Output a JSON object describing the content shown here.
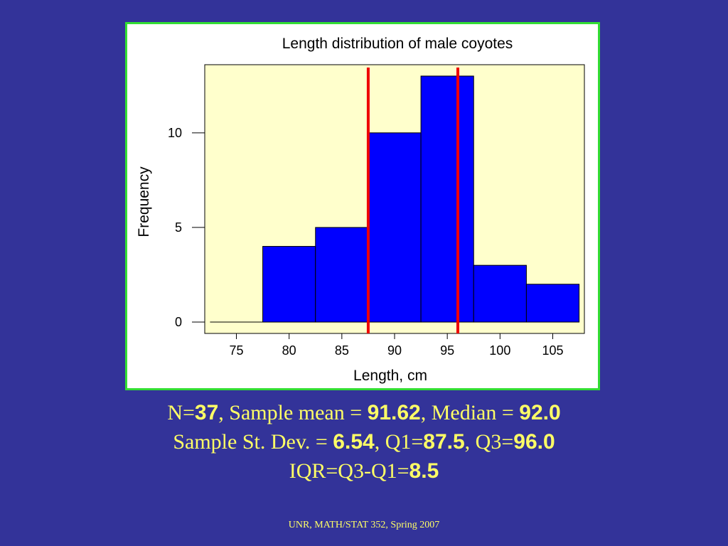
{
  "colors": {
    "background": "#333399",
    "panel_border": "#33dd33",
    "plot_background": "#ffffcc",
    "bar_fill": "#0000ff",
    "marker_line": "#ee0000",
    "stats_text": "#ffff66"
  },
  "chart_data": {
    "type": "bar",
    "title": "Length distribution of male coyotes",
    "xlabel": "Length, cm",
    "ylabel": "Frequency",
    "bins": [
      {
        "from": 72.5,
        "to": 77.5,
        "count": 0
      },
      {
        "from": 77.5,
        "to": 82.5,
        "count": 4
      },
      {
        "from": 82.5,
        "to": 87.5,
        "count": 5
      },
      {
        "from": 87.5,
        "to": 92.5,
        "count": 10
      },
      {
        "from": 92.5,
        "to": 97.5,
        "count": 13
      },
      {
        "from": 97.5,
        "to": 102.5,
        "count": 3
      },
      {
        "from": 102.5,
        "to": 107.5,
        "count": 2
      }
    ],
    "x_ticks": [
      75,
      80,
      85,
      90,
      95,
      100,
      105
    ],
    "y_ticks": [
      0,
      5,
      10
    ],
    "xlim": [
      72,
      108
    ],
    "ylim": [
      -0.6,
      13.6
    ],
    "vertical_lines": [
      87.5,
      96.0
    ],
    "grid": false,
    "legend": "none"
  },
  "stats": {
    "line1": {
      "n_label": "N=",
      "n_value": "37",
      "mean_label": ", Sample mean = ",
      "mean_value": "91.62",
      "median_label": ", Median = ",
      "median_value": "92.0"
    },
    "line2": {
      "sd_label": "Sample St. Dev. = ",
      "sd_value": "6.54",
      "q1_label": ", Q1=",
      "q1_value": "87.5",
      "q3_label": ", Q3=",
      "q3_value": "96.0"
    },
    "line3": {
      "iqr_label": "IQR=Q3-Q1=",
      "iqr_value": "8.5"
    }
  },
  "footer": "UNR, MATH/STAT 352, Spring 2007"
}
